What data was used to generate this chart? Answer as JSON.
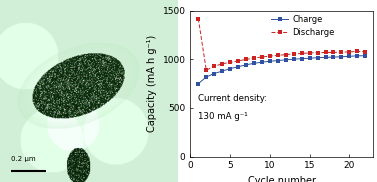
{
  "charge_cycles": [
    1,
    2,
    3,
    4,
    5,
    6,
    7,
    8,
    9,
    10,
    11,
    12,
    13,
    14,
    15,
    16,
    17,
    18,
    19,
    20,
    21,
    22
  ],
  "charge_values": [
    750,
    820,
    855,
    880,
    905,
    925,
    945,
    960,
    972,
    982,
    988,
    997,
    1003,
    1008,
    1013,
    1018,
    1022,
    1024,
    1028,
    1032,
    1038,
    1038
  ],
  "discharge_cycles": [
    1,
    2,
    3,
    4,
    5,
    6,
    7,
    8,
    9,
    10,
    11,
    12,
    13,
    14,
    15,
    16,
    17,
    18,
    19,
    20,
    21,
    22
  ],
  "discharge_values": [
    1420,
    890,
    930,
    955,
    970,
    985,
    1000,
    1015,
    1025,
    1035,
    1042,
    1050,
    1057,
    1062,
    1067,
    1070,
    1072,
    1072,
    1075,
    1078,
    1082,
    1080
  ],
  "ylabel": "Capacity (mA h g⁻¹)",
  "xlabel": "Cycle number",
  "ylim": [
    0,
    1500
  ],
  "xlim": [
    0,
    23
  ],
  "yticks": [
    0,
    500,
    1000,
    1500
  ],
  "xticks": [
    0,
    5,
    10,
    15,
    20
  ],
  "charge_color": "#3050a0",
  "discharge_color": "#cc2222",
  "annotation_line1": "Current density:",
  "annotation_line2": "130 mA g⁻¹",
  "legend_charge": "Charge",
  "legend_discharge": "Discharge",
  "img_bg_light": [
    0.82,
    0.94,
    0.84
  ],
  "img_bg_glow": [
    0.72,
    0.9,
    0.74
  ],
  "scalebar_text": "0.2 μm"
}
